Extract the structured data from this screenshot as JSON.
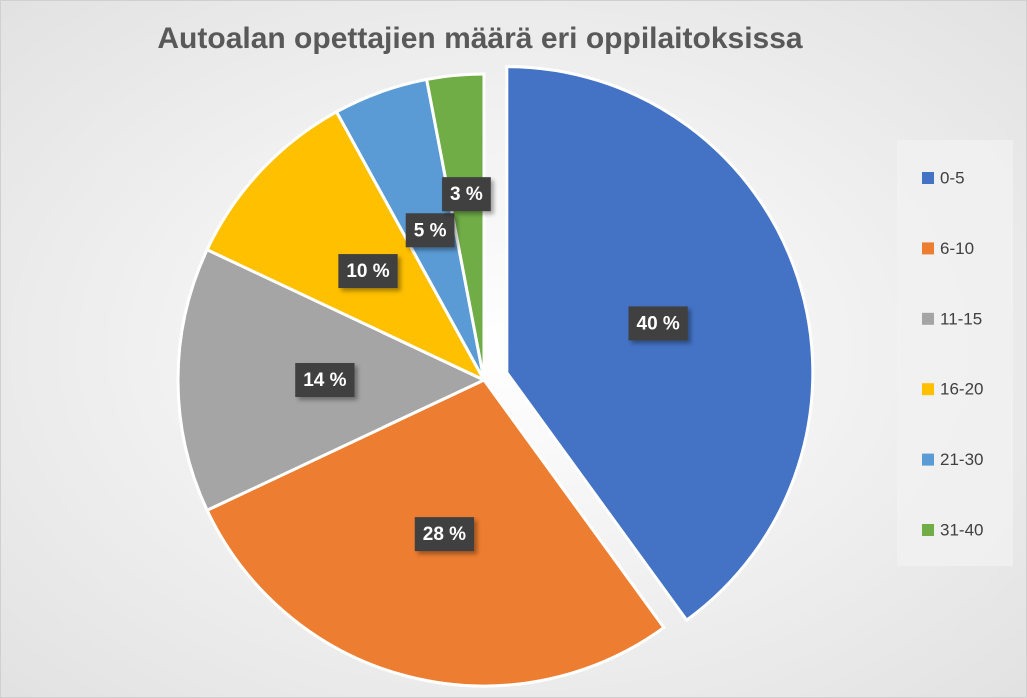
{
  "chart_data": {
    "type": "pie",
    "title": "Autoalan opettajien määrä eri oppilaitoksissa",
    "categories": [
      "0-5",
      "6-10",
      "11-15",
      "16-20",
      "21-30",
      "31-40"
    ],
    "values": [
      40,
      28,
      14,
      10,
      5,
      3
    ],
    "value_labels": [
      "40 %",
      "28 %",
      "14 %",
      "10 %",
      "5 %",
      "3 %"
    ],
    "colors": [
      "#4472c4",
      "#ed7d31",
      "#a5a5a5",
      "#ffc000",
      "#5b9bd5",
      "#70ad47"
    ],
    "exploded": [
      "0-5"
    ],
    "legend": "right"
  }
}
